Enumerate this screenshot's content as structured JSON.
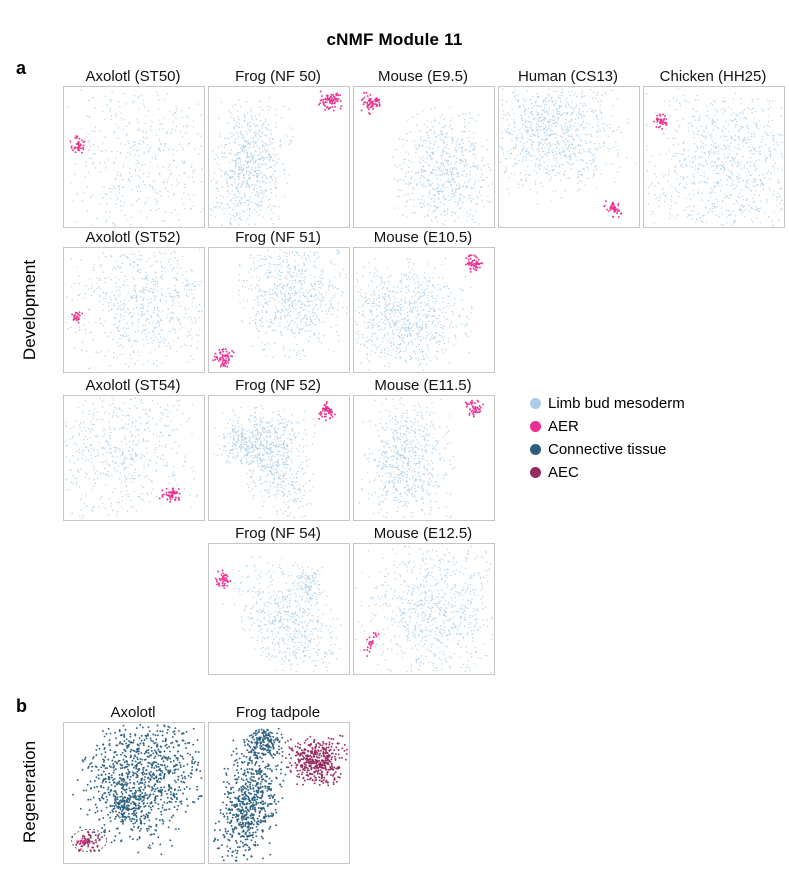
{
  "title": "cNMF Module 11",
  "panel_a": "a",
  "panel_b": "b",
  "colors": {
    "limb_bud_mesoderm": "#a9cde4",
    "aer": "#ea2d8e",
    "connective_tissue": "#2a5f7d",
    "aec": "#96295f",
    "plot_border": "#c6c6c6"
  },
  "legend": {
    "items": [
      {
        "label": "Limb bud mesoderm",
        "color_key": "limb_bud_mesoderm"
      },
      {
        "label": "AER",
        "color_key": "aer"
      },
      {
        "label": "Connective tissue",
        "color_key": "connective_tissue"
      },
      {
        "label": "AEC",
        "color_key": "aec"
      }
    ]
  },
  "chart_data": {
    "type": "scatter",
    "title": "cNMF Module 11",
    "point_categories": [
      "Limb bud mesoderm",
      "AER",
      "Connective tissue",
      "AEC"
    ],
    "sections": [
      {
        "id": "development",
        "label": "Development",
        "rows": [
          {
            "plots": [
              {
                "title": "Axolotl (ST50)",
                "col": 0,
                "clusters": [
                  {
                    "color": "limb_bud_mesoderm",
                    "cx": 0.6,
                    "cy": 0.5,
                    "rx": 0.3,
                    "ry": 0.3,
                    "n": 480
                  },
                  {
                    "color": "aer",
                    "cx": 0.1,
                    "cy": 0.42,
                    "rx": 0.025,
                    "ry": 0.035,
                    "n": 40
                  }
                ]
              },
              {
                "title": "Frog (NF 50)",
                "col": 1,
                "clusters": [
                  {
                    "color": "limb_bud_mesoderm",
                    "cx": 0.28,
                    "cy": 0.6,
                    "rx": 0.13,
                    "ry": 0.24,
                    "n": 680,
                    "angle": 8
                  },
                  {
                    "color": "aer",
                    "cx": 0.87,
                    "cy": 0.1,
                    "rx": 0.04,
                    "ry": 0.035,
                    "n": 75
                  }
                ]
              },
              {
                "title": "Mouse (E9.5)",
                "col": 2,
                "clusters": [
                  {
                    "color": "limb_bud_mesoderm",
                    "cx": 0.66,
                    "cy": 0.6,
                    "rx": 0.17,
                    "ry": 0.21,
                    "n": 620
                  },
                  {
                    "color": "aer",
                    "cx": 0.12,
                    "cy": 0.12,
                    "rx": 0.035,
                    "ry": 0.035,
                    "n": 60
                  }
                ]
              },
              {
                "title": "Human (CS13)",
                "col": 3,
                "clusters": [
                  {
                    "color": "limb_bud_mesoderm",
                    "cx": 0.38,
                    "cy": 0.31,
                    "rx": 0.24,
                    "ry": 0.22,
                    "n": 900,
                    "angle": -15
                  },
                  {
                    "color": "aer",
                    "cx": 0.82,
                    "cy": 0.87,
                    "rx": 0.03,
                    "ry": 0.03,
                    "n": 45
                  }
                ]
              },
              {
                "title": "Chicken (HH25)",
                "col": 4,
                "clusters": [
                  {
                    "color": "limb_bud_mesoderm",
                    "cx": 0.58,
                    "cy": 0.55,
                    "rx": 0.32,
                    "ry": 0.3,
                    "n": 1000
                  },
                  {
                    "color": "aer",
                    "cx": 0.11,
                    "cy": 0.24,
                    "rx": 0.025,
                    "ry": 0.03,
                    "n": 40
                  }
                ]
              }
            ]
          },
          {
            "plots": [
              {
                "title": "Axolotl (ST52)",
                "col": 0,
                "clusters": [
                  {
                    "color": "limb_bud_mesoderm",
                    "cx": 0.58,
                    "cy": 0.46,
                    "rx": 0.28,
                    "ry": 0.28,
                    "n": 700
                  },
                  {
                    "color": "aer",
                    "cx": 0.09,
                    "cy": 0.55,
                    "rx": 0.02,
                    "ry": 0.025,
                    "n": 25
                  }
                ]
              },
              {
                "title": "Frog (NF 51)",
                "col": 1,
                "clusters": [
                  {
                    "color": "limb_bud_mesoderm",
                    "cx": 0.6,
                    "cy": 0.36,
                    "rx": 0.18,
                    "ry": 0.24,
                    "n": 680
                  },
                  {
                    "color": "aer",
                    "cx": 0.1,
                    "cy": 0.89,
                    "rx": 0.035,
                    "ry": 0.035,
                    "n": 60
                  }
                ]
              },
              {
                "title": "Mouse (E10.5)",
                "col": 2,
                "clusters": [
                  {
                    "color": "limb_bud_mesoderm",
                    "cx": 0.36,
                    "cy": 0.58,
                    "rx": 0.22,
                    "ry": 0.22,
                    "n": 780
                  },
                  {
                    "color": "aer",
                    "cx": 0.86,
                    "cy": 0.12,
                    "rx": 0.035,
                    "ry": 0.035,
                    "n": 55
                  }
                ]
              }
            ]
          },
          {
            "plots": [
              {
                "title": "Axolotl (ST54)",
                "col": 0,
                "clusters": [
                  {
                    "color": "limb_bud_mesoderm",
                    "cx": 0.4,
                    "cy": 0.42,
                    "rx": 0.28,
                    "ry": 0.3,
                    "n": 620
                  },
                  {
                    "color": "aer",
                    "cx": 0.76,
                    "cy": 0.8,
                    "rx": 0.035,
                    "ry": 0.03,
                    "n": 50
                  }
                ]
              },
              {
                "title": "Frog (NF 52)",
                "col": 1,
                "clusters": [
                  {
                    "color": "limb_bud_mesoderm",
                    "cx": 0.4,
                    "cy": 0.33,
                    "rx": 0.16,
                    "ry": 0.12,
                    "n": 300
                  },
                  {
                    "color": "limb_bud_mesoderm",
                    "cx": 0.48,
                    "cy": 0.6,
                    "rx": 0.11,
                    "ry": 0.2,
                    "n": 360,
                    "angle": -20
                  },
                  {
                    "color": "limb_bud_mesoderm",
                    "cx": 0.24,
                    "cy": 0.4,
                    "rx": 0.08,
                    "ry": 0.07,
                    "n": 120
                  },
                  {
                    "color": "aer",
                    "cx": 0.84,
                    "cy": 0.12,
                    "rx": 0.03,
                    "ry": 0.035,
                    "n": 55
                  }
                ]
              },
              {
                "title": "Mouse (E11.5)",
                "col": 2,
                "clusters": [
                  {
                    "color": "limb_bud_mesoderm",
                    "cx": 0.38,
                    "cy": 0.54,
                    "rx": 0.15,
                    "ry": 0.27,
                    "n": 660
                  },
                  {
                    "color": "aer",
                    "cx": 0.86,
                    "cy": 0.1,
                    "rx": 0.03,
                    "ry": 0.03,
                    "n": 45
                  }
                ]
              }
            ]
          },
          {
            "plots": [
              {
                "title": "Frog (NF 54)",
                "col": 1,
                "clusters": [
                  {
                    "color": "limb_bud_mesoderm",
                    "cx": 0.58,
                    "cy": 0.62,
                    "rx": 0.15,
                    "ry": 0.26,
                    "n": 560,
                    "angle": -32
                  },
                  {
                    "color": "limb_bud_mesoderm",
                    "cx": 0.72,
                    "cy": 0.32,
                    "rx": 0.06,
                    "ry": 0.08,
                    "n": 120
                  },
                  {
                    "color": "aer",
                    "cx": 0.1,
                    "cy": 0.28,
                    "rx": 0.025,
                    "ry": 0.035,
                    "n": 45
                  }
                ]
              },
              {
                "title": "Mouse (E12.5)",
                "col": 2,
                "clusters": [
                  {
                    "color": "limb_bud_mesoderm",
                    "cx": 0.58,
                    "cy": 0.5,
                    "rx": 0.25,
                    "ry": 0.3,
                    "n": 820
                  },
                  {
                    "color": "aer",
                    "cx": 0.12,
                    "cy": 0.76,
                    "rx": 0.02,
                    "ry": 0.045,
                    "n": 25,
                    "angle": 30
                  }
                ]
              }
            ]
          }
        ]
      },
      {
        "id": "regeneration",
        "label": "Regeneration",
        "rows": [
          {
            "plots": [
              {
                "title": "Axolotl",
                "col": 0,
                "clusters": [
                  {
                    "color": "connective_tissue",
                    "cx": 0.56,
                    "cy": 0.38,
                    "rx": 0.2,
                    "ry": 0.23,
                    "n": 950,
                    "angle": 25
                  },
                  {
                    "color": "connective_tissue",
                    "cx": 0.45,
                    "cy": 0.6,
                    "rx": 0.06,
                    "ry": 0.05,
                    "n": 110
                  },
                  {
                    "color": "aec",
                    "cx": 0.17,
                    "cy": 0.85,
                    "rx": 0.05,
                    "ry": 0.035,
                    "n": 65
                  },
                  {
                    "color": "aer",
                    "cx": 0.13,
                    "cy": 0.86,
                    "rx": 0.02,
                    "ry": 0.02,
                    "n": 14
                  }
                ],
                "annotation": {
                  "type": "dashed_ellipse",
                  "cx": 0.18,
                  "cy": 0.84,
                  "rx": 0.125,
                  "ry": 0.08
                }
              },
              {
                "title": "Frog tadpole",
                "col": 1,
                "clusters": [
                  {
                    "color": "connective_tissue",
                    "cx": 0.38,
                    "cy": 0.14,
                    "rx": 0.07,
                    "ry": 0.05,
                    "n": 160
                  },
                  {
                    "color": "connective_tissue",
                    "cx": 0.29,
                    "cy": 0.58,
                    "rx": 0.1,
                    "ry": 0.22,
                    "n": 700,
                    "angle": 12
                  },
                  {
                    "color": "aec",
                    "cx": 0.77,
                    "cy": 0.27,
                    "rx": 0.1,
                    "ry": 0.08,
                    "n": 430
                  }
                ]
              }
            ]
          }
        ]
      }
    ]
  }
}
